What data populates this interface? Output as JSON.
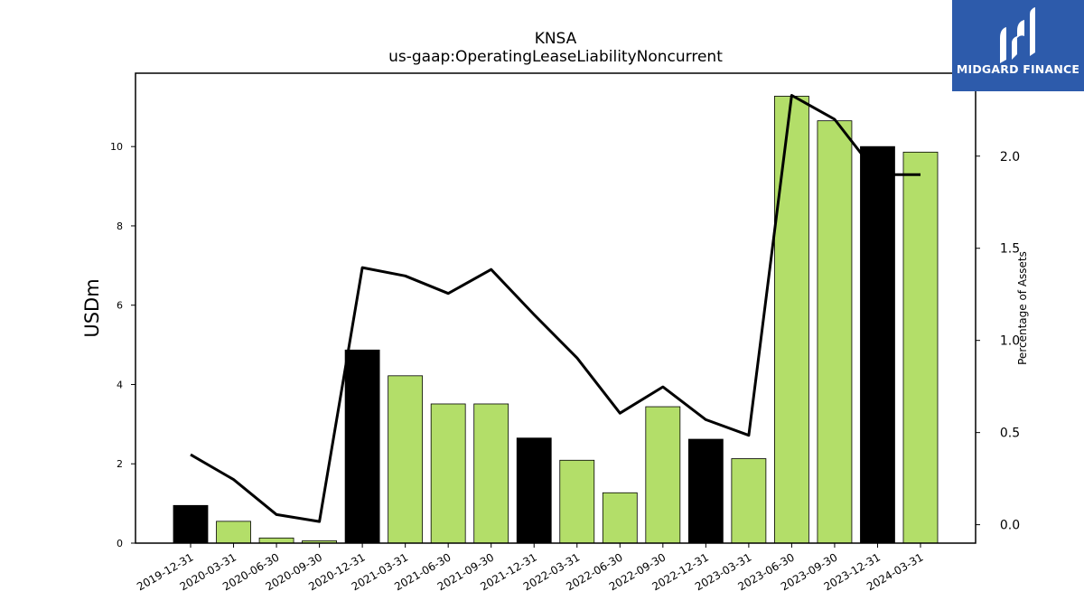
{
  "chart_data": {
    "type": "bar",
    "title": "KNSA",
    "subtitle": "us-gaap:OperatingLeaseLiabilityNoncurrent",
    "ylabel": "USDm",
    "y2label": "Percentage of Assets",
    "ylim": [
      0,
      11.85
    ],
    "y2lim": [
      -0.1,
      2.45
    ],
    "yticks": [
      0,
      2,
      4,
      6,
      8,
      10
    ],
    "y2ticks": [
      0.0,
      0.5,
      1.0,
      1.5,
      2.0
    ],
    "categories": [
      "2019-12-31",
      "2020-03-31",
      "2020-06-30",
      "2020-09-30",
      "2020-12-31",
      "2021-03-31",
      "2021-06-30",
      "2021-09-30",
      "2021-12-31",
      "2022-03-31",
      "2022-06-30",
      "2022-09-30",
      "2022-12-31",
      "2023-03-31",
      "2023-06-30",
      "2023-09-30",
      "2023-12-31",
      "2024-03-31"
    ],
    "series": [
      {
        "values": [
          0.95,
          0.55,
          0.13,
          0.06,
          4.87,
          4.22,
          3.51,
          3.51,
          2.65,
          2.09,
          1.27,
          3.44,
          2.62,
          2.13,
          11.27,
          10.65,
          10.0,
          9.86
        ],
        "fills": [
          "#000000",
          "#b3de69",
          "#b3de69",
          "#b3de69",
          "#000000",
          "#b3de69",
          "#b3de69",
          "#b3de69",
          "#000000",
          "#b3de69",
          "#b3de69",
          "#b3de69",
          "#000000",
          "#b3de69",
          "#b3de69",
          "#b3de69",
          "#000000",
          "#b3de69"
        ]
      },
      {
        "axis": "right",
        "values": [
          0.38,
          0.245,
          0.055,
          0.017,
          1.395,
          1.35,
          1.255,
          1.385,
          1.14,
          0.905,
          0.605,
          0.748,
          0.57,
          0.485,
          2.33,
          2.2,
          1.9,
          1.9
        ]
      }
    ],
    "colors": {
      "highlight": "#000000",
      "bar": "#b3de69",
      "line": "#000000"
    }
  },
  "logo": {
    "text": "MIDGARD FINANCE",
    "background": "#2d5bab"
  }
}
